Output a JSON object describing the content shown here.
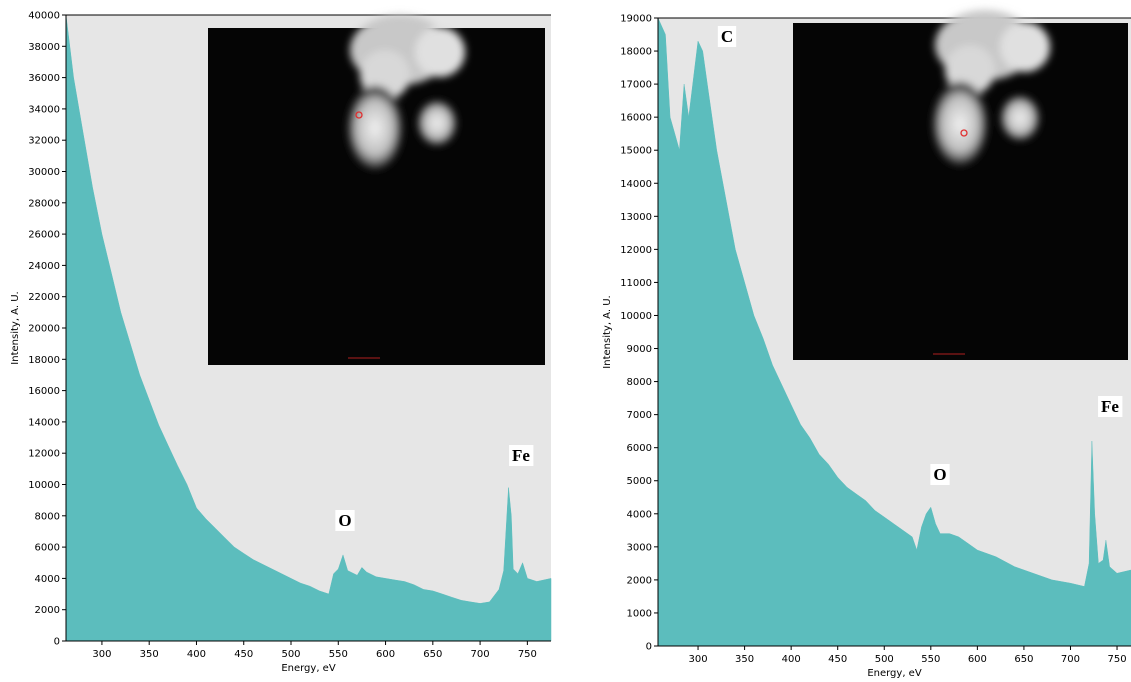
{
  "chart_data": [
    {
      "type": "area",
      "color": "#5cbdbd",
      "background": "#e6e6e6",
      "xlabel": "Energy, eV",
      "ylabel": "Intensity, A. U.",
      "xlim": [
        262,
        775
      ],
      "ylim": [
        0,
        40000
      ],
      "xticks": [
        300,
        350,
        400,
        450,
        500,
        550,
        600,
        650,
        700,
        750
      ],
      "yticks": [
        0,
        2000,
        4000,
        6000,
        8000,
        10000,
        12000,
        14000,
        16000,
        18000,
        20000,
        22000,
        24000,
        26000,
        28000,
        30000,
        32000,
        34000,
        36000,
        38000,
        40000
      ],
      "annotations": [
        "O",
        "Fe"
      ],
      "x": [
        262,
        270,
        280,
        290,
        300,
        310,
        320,
        330,
        340,
        350,
        360,
        370,
        380,
        390,
        400,
        410,
        420,
        430,
        440,
        450,
        460,
        470,
        480,
        490,
        500,
        510,
        520,
        530,
        540,
        545,
        550,
        555,
        560,
        570,
        575,
        580,
        590,
        600,
        610,
        620,
        630,
        640,
        650,
        660,
        670,
        680,
        690,
        700,
        710,
        720,
        725,
        730,
        733,
        735,
        740,
        745,
        750,
        760,
        775
      ],
      "values": [
        40000,
        36000,
        32500,
        29000,
        26000,
        23500,
        21000,
        19000,
        17000,
        15400,
        13800,
        12500,
        11200,
        10000,
        8500,
        7800,
        7200,
        6600,
        6000,
        5600,
        5200,
        4900,
        4600,
        4300,
        4000,
        3700,
        3500,
        3200,
        3000,
        4300,
        4600,
        5500,
        4500,
        4200,
        4700,
        4400,
        4100,
        4000,
        3900,
        3800,
        3600,
        3300,
        3200,
        3000,
        2800,
        2600,
        2500,
        2400,
        2500,
        3300,
        4500,
        9800,
        8000,
        4600,
        4300,
        5000,
        4000,
        3800,
        4000
      ]
    },
    {
      "type": "area",
      "color": "#5cbdbd",
      "background": "#e6e6e6",
      "xlabel": "Energy, eV",
      "ylabel": "Intensity, A. U.",
      "xlim": [
        257,
        765
      ],
      "ylim": [
        0,
        19000
      ],
      "xticks": [
        300,
        350,
        400,
        450,
        500,
        550,
        600,
        650,
        700,
        750
      ],
      "yticks": [
        0,
        1000,
        2000,
        3000,
        4000,
        5000,
        6000,
        7000,
        8000,
        9000,
        10000,
        11000,
        12000,
        13000,
        14000,
        15000,
        16000,
        17000,
        18000,
        19000
      ],
      "annotations": [
        "C",
        "O",
        "Fe"
      ],
      "x": [
        257,
        265,
        270,
        275,
        280,
        285,
        290,
        300,
        305,
        310,
        320,
        330,
        340,
        350,
        360,
        370,
        380,
        390,
        400,
        410,
        420,
        430,
        440,
        450,
        460,
        470,
        480,
        490,
        500,
        510,
        520,
        530,
        535,
        540,
        545,
        550,
        555,
        560,
        570,
        580,
        590,
        600,
        620,
        640,
        660,
        680,
        700,
        715,
        720,
        723,
        726,
        730,
        735,
        738,
        742,
        750,
        765
      ],
      "values": [
        19000,
        18500,
        16000,
        15500,
        15000,
        17000,
        16000,
        18300,
        18000,
        17000,
        15000,
        13500,
        12000,
        11000,
        10000,
        9300,
        8500,
        7900,
        7300,
        6700,
        6300,
        5800,
        5500,
        5100,
        4800,
        4600,
        4400,
        4100,
        3900,
        3700,
        3500,
        3300,
        2900,
        3600,
        4000,
        4200,
        3700,
        3400,
        3400,
        3300,
        3100,
        2900,
        2700,
        2400,
        2200,
        2000,
        1900,
        1800,
        2500,
        6200,
        4000,
        2500,
        2600,
        3200,
        2400,
        2200,
        2300
      ]
    }
  ]
}
